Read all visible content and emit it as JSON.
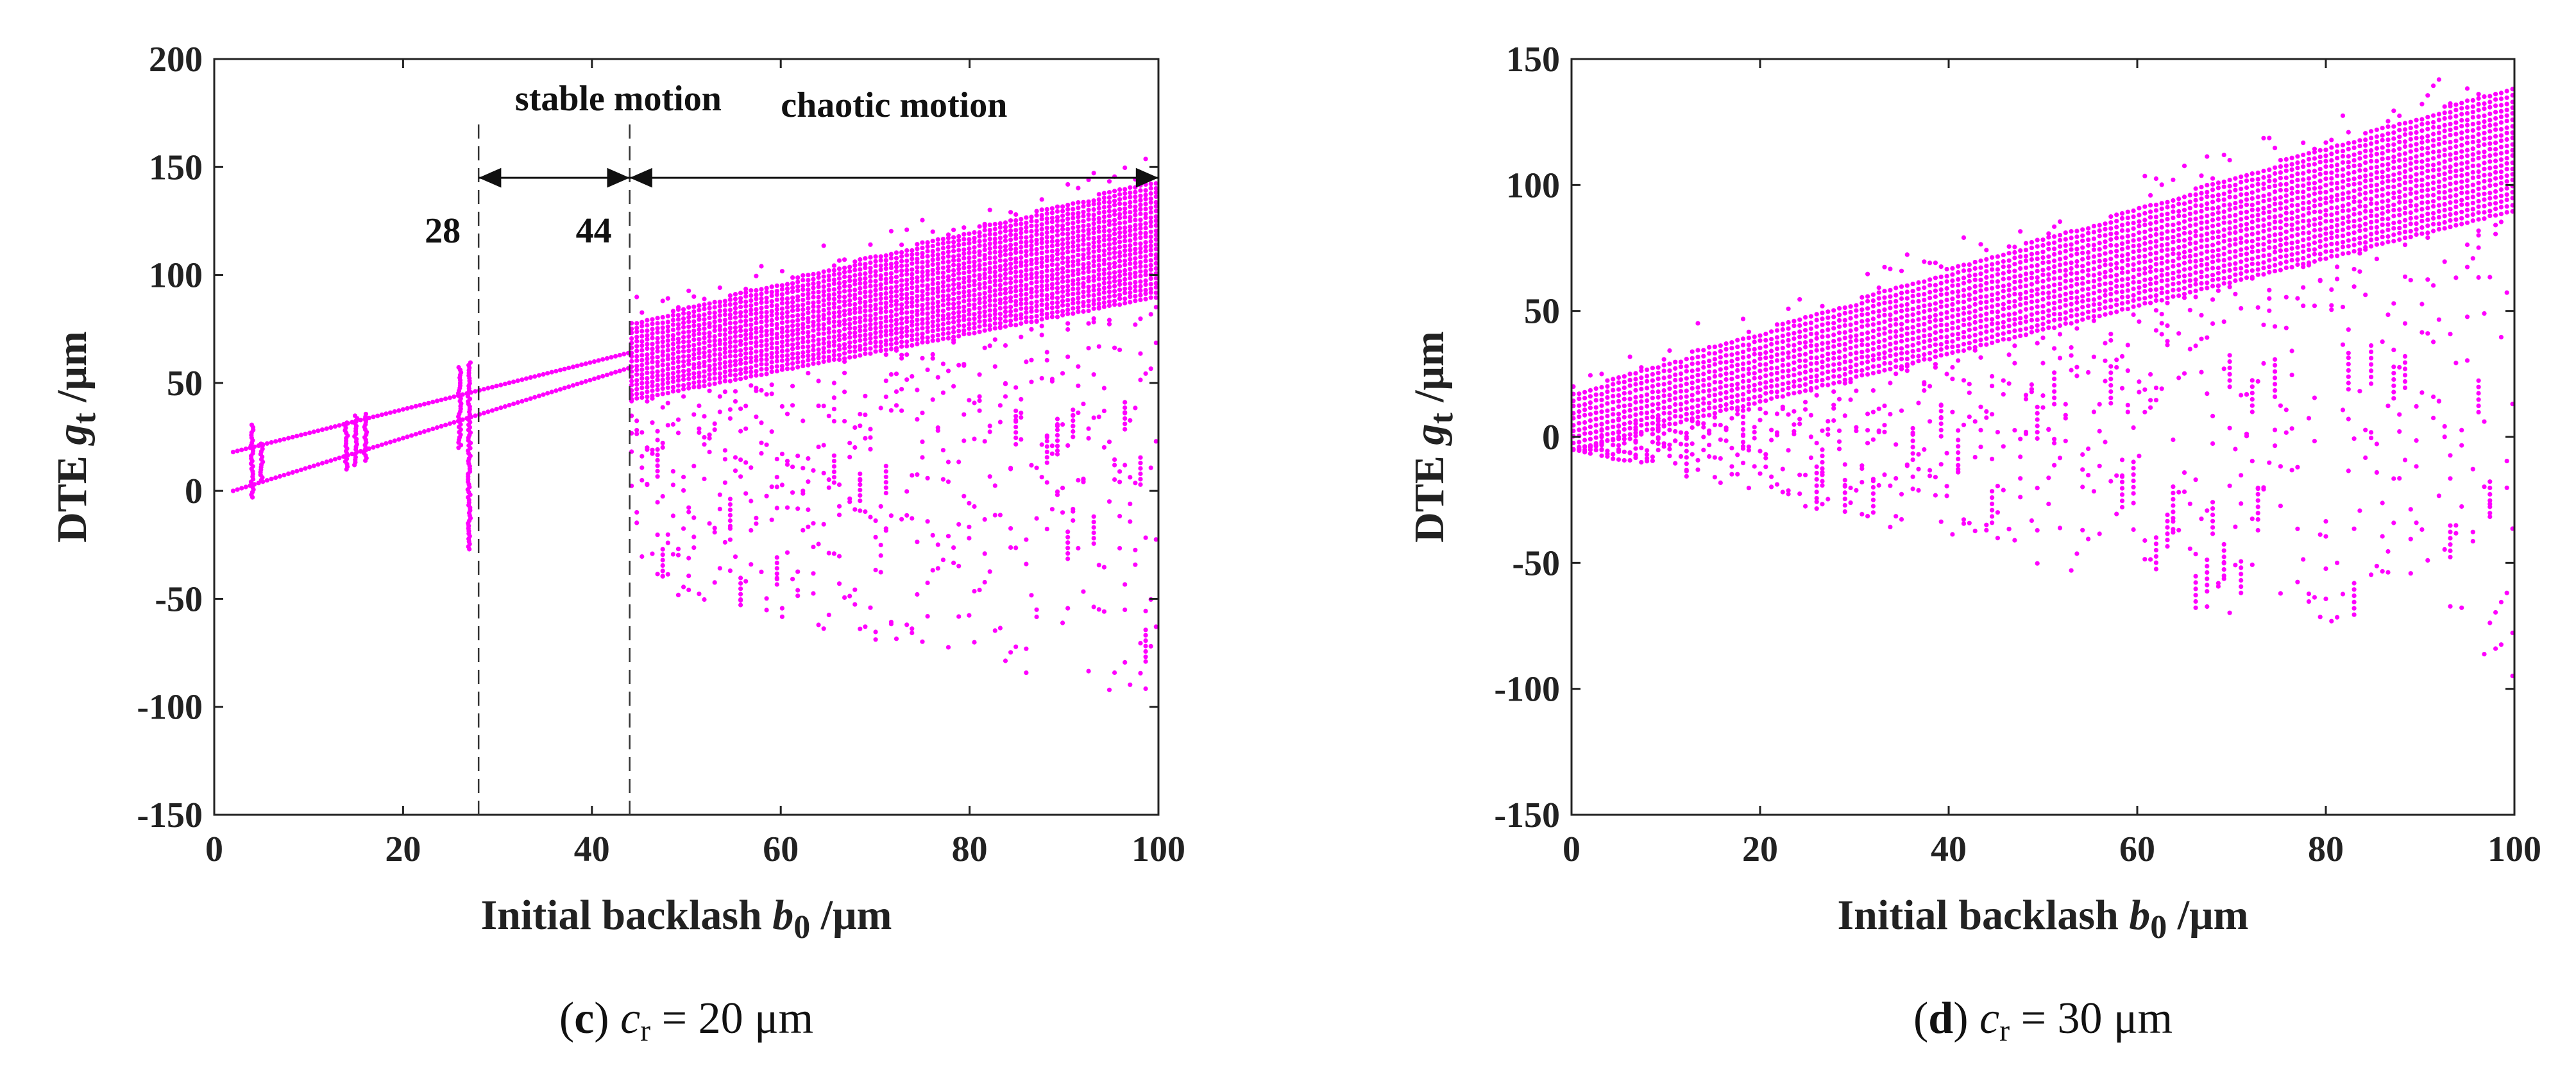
{
  "chart_data": [
    {
      "type": "scatter",
      "panel": "c",
      "caption": {
        "label": "c",
        "variable": "c",
        "subscript": "r",
        "value_text": "= 20 μm"
      },
      "xlabel": {
        "main": "Initial backlash ",
        "var": "b",
        "sub": "0",
        "unit": " /μm"
      },
      "ylabel": {
        "main": "DTE ",
        "var": "g",
        "sub": "t",
        "unit": " /μm"
      },
      "xlim": [
        0,
        100
      ],
      "ylim": [
        -150,
        200
      ],
      "xticks": [
        0,
        20,
        40,
        60,
        80,
        100
      ],
      "yticks": [
        -150,
        -100,
        -50,
        0,
        50,
        100,
        150,
        200
      ],
      "color": "#ff00ff",
      "regions": [
        {
          "label": "stable motion",
          "from": 28,
          "to": 44
        },
        {
          "label": "chaotic motion",
          "from": 44,
          "to": 100
        }
      ],
      "boundaries": [
        {
          "x": 28,
          "label": "28"
        },
        {
          "x": 44,
          "label": "44"
        }
      ],
      "arrow_y": 145,
      "stable_branches": [
        {
          "name": "upper",
          "x": [
            2,
            44
          ],
          "y": [
            18,
            64
          ]
        },
        {
          "name": "lower",
          "x": [
            2,
            44
          ],
          "y": [
            0,
            57
          ]
        }
      ],
      "periodic_windows": [
        {
          "x": 4,
          "ymin": -3,
          "ymax": 31
        },
        {
          "x": 5,
          "ymin": 5,
          "ymax": 22
        },
        {
          "x": 14,
          "ymin": 10,
          "ymax": 32
        },
        {
          "x": 15,
          "ymin": 12,
          "ymax": 35
        },
        {
          "x": 16,
          "ymin": 14,
          "ymax": 36
        },
        {
          "x": 26,
          "ymin": 20,
          "ymax": 58
        },
        {
          "x": 27,
          "ymin": -27,
          "ymax": 60
        }
      ],
      "chaotic_band": {
        "x_start": 44,
        "x_end": 100,
        "dense_upper_start": 78,
        "dense_upper_end": 145,
        "dense_lower_start": 42,
        "dense_lower_end": 90,
        "scatter_lower_start": -45,
        "scatter_lower_end": -100
      }
    },
    {
      "type": "scatter",
      "panel": "d",
      "caption": {
        "label": "d",
        "variable": "c",
        "subscript": "r",
        "value_text": "= 30 μm"
      },
      "xlabel": {
        "main": "Initial backlash ",
        "var": "b",
        "sub": "0",
        "unit": " /μm"
      },
      "ylabel": {
        "main": "DTE ",
        "var": "g",
        "sub": "t",
        "unit": " /μm"
      },
      "xlim": [
        0,
        100
      ],
      "ylim": [
        -150,
        150
      ],
      "xticks": [
        0,
        20,
        40,
        60,
        80,
        100
      ],
      "yticks": [
        -150,
        -100,
        -50,
        0,
        50,
        100,
        150
      ],
      "color": "#ff00ff",
      "chaotic_band": {
        "x_start": 0,
        "x_end": 100,
        "dense_upper_start": 18,
        "dense_upper_end": 140,
        "dense_lower_start": -5,
        "dense_lower_end": 90,
        "scatter_lower_start": -5,
        "scatter_lower_end": -100
      }
    }
  ]
}
